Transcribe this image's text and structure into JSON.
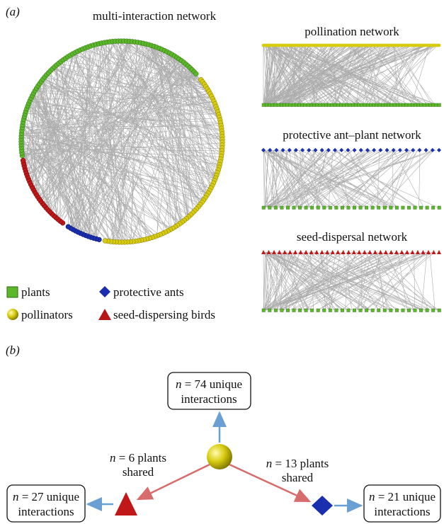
{
  "panel_a": {
    "label": "(a)",
    "titles": {
      "multi": "multi-interaction network",
      "pollination": "pollination network",
      "ant": "protective ant–plant network",
      "seed": "seed-dispersal network"
    },
    "legend": {
      "plants": "plants",
      "ants": "protective ants",
      "pollinators": "pollinators",
      "birds": "seed-dispersing birds"
    }
  },
  "panel_b": {
    "label": "(b)",
    "boxes": {
      "top": {
        "var": "n",
        "line1": " = 74 unique",
        "line2": "interactions"
      },
      "left": {
        "var": "n",
        "line1": " = 27 unique",
        "line2": "interactions"
      },
      "right": {
        "var": "n",
        "line1": " = 21 unique",
        "line2": "interactions"
      }
    },
    "shared": {
      "left": {
        "var": "n",
        "line1": " = 6 plants",
        "line2": "shared"
      },
      "right": {
        "var": "n",
        "line1": " = 13 plants",
        "line2": "shared"
      }
    }
  }
}
